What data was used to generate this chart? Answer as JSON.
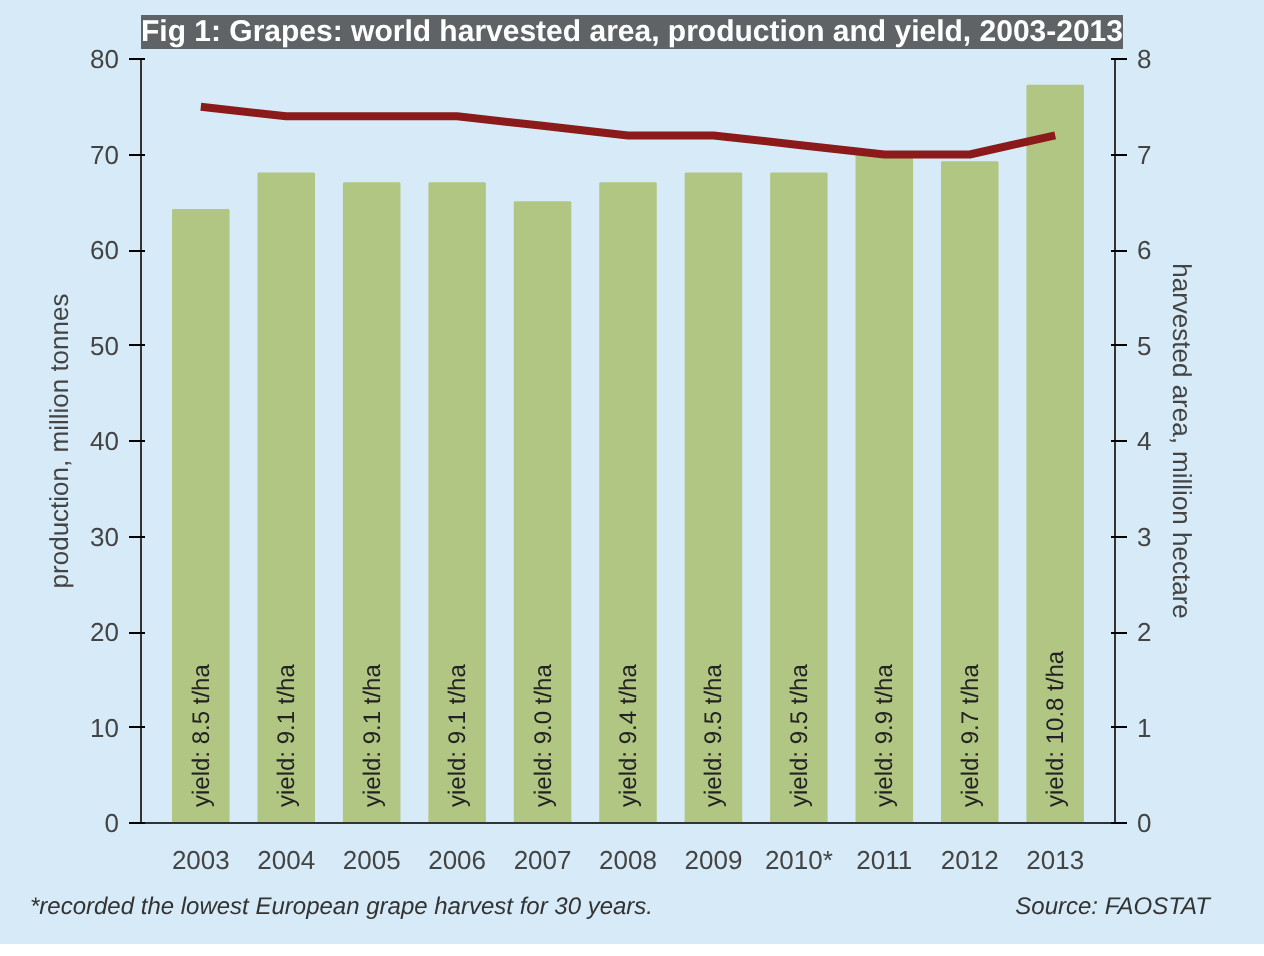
{
  "chart_data": {
    "type": "bar",
    "title": "Fig 1: Grapes: world harvested area, production and yield, 2003-2013",
    "categories": [
      "2003",
      "2004",
      "2005",
      "2006",
      "2007",
      "2008",
      "2009",
      "2010*",
      "2011",
      "2012",
      "2013"
    ],
    "series": [
      {
        "color": "#b2c683",
        "values": [
          64.2,
          68,
          67,
          67,
          65,
          67,
          68,
          68,
          70,
          69.2,
          77.2
        ]
      },
      {
        "type": "line",
        "axis": "y2",
        "color": "#8b1a1a",
        "values": [
          7.5,
          7.4,
          7.4,
          7.4,
          7.3,
          7.2,
          7.2,
          7.1,
          7.0,
          7.0,
          7.2
        ]
      }
    ],
    "ylabel": "production, million tonnes",
    "y2label": "harvested area, million hectare",
    "ylim": [
      0,
      80
    ],
    "yticks": [
      0,
      10,
      20,
      30,
      40,
      50,
      60,
      70,
      80
    ],
    "y2lim": [
      0,
      8
    ],
    "y2ticks": [
      0,
      1,
      2,
      3,
      4,
      5,
      6,
      7,
      8
    ],
    "annotations": [
      {
        "text": "yield: 8.5 t/ha",
        "x": "2003",
        "y": 0
      },
      {
        "text": "yield: 9.1 t/ha",
        "x": "2004",
        "y": 0
      },
      {
        "text": "yield: 9.1 t/ha",
        "x": "2005",
        "y": 0
      },
      {
        "text": "yield: 9.1 t/ha",
        "x": "2006",
        "y": 0
      },
      {
        "text": "yield: 9.0 t/ha",
        "x": "2007",
        "y": 0
      },
      {
        "text": "yield: 9.4 t/ha",
        "x": "2008",
        "y": 0
      },
      {
        "text": "yield: 9.5 t/ha",
        "x": "2009",
        "y": 0
      },
      {
        "text": "yield: 9.5 t/ha",
        "x": "2010*",
        "y": 0
      },
      {
        "text": "yield: 9.9 t/ha",
        "x": "2011",
        "y": 0
      },
      {
        "text": "yield: 9.7 t/ha",
        "x": "2012",
        "y": 0
      },
      {
        "text": "yield: 10.8 t/ha",
        "x": "2013",
        "y": 0
      },
      "*recorded the lowest European grape harvest for 30 years.",
      "Source: FAOSTAT"
    ]
  }
}
